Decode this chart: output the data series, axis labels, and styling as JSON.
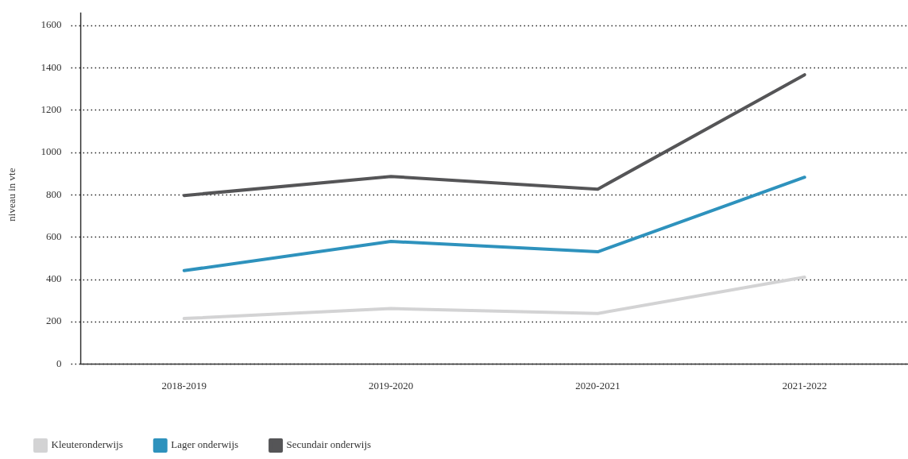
{
  "chart_data": {
    "type": "line",
    "ylabel": "niveau in vte",
    "categories": [
      "2018-2019",
      "2019-2020",
      "2020-2021",
      "2021-2022"
    ],
    "series": [
      {
        "name": "Kleuteronderwijs",
        "color": "#d3d3d4",
        "values": [
          215,
          262,
          239,
          410
        ]
      },
      {
        "name": "Lager onderwijs",
        "color": "#2e92bd",
        "values": [
          441,
          579,
          530,
          882
        ]
      },
      {
        "name": "Secundair onderwijs",
        "color": "#555557",
        "values": [
          796,
          886,
          826,
          1366
        ]
      }
    ],
    "ylim": [
      0,
      1600
    ],
    "yticks": [
      0,
      200,
      400,
      600,
      800,
      1000,
      1200,
      1400,
      1600
    ],
    "grid": "y",
    "legend": "bottom left",
    "marker": "none",
    "line_style": "solid"
  }
}
